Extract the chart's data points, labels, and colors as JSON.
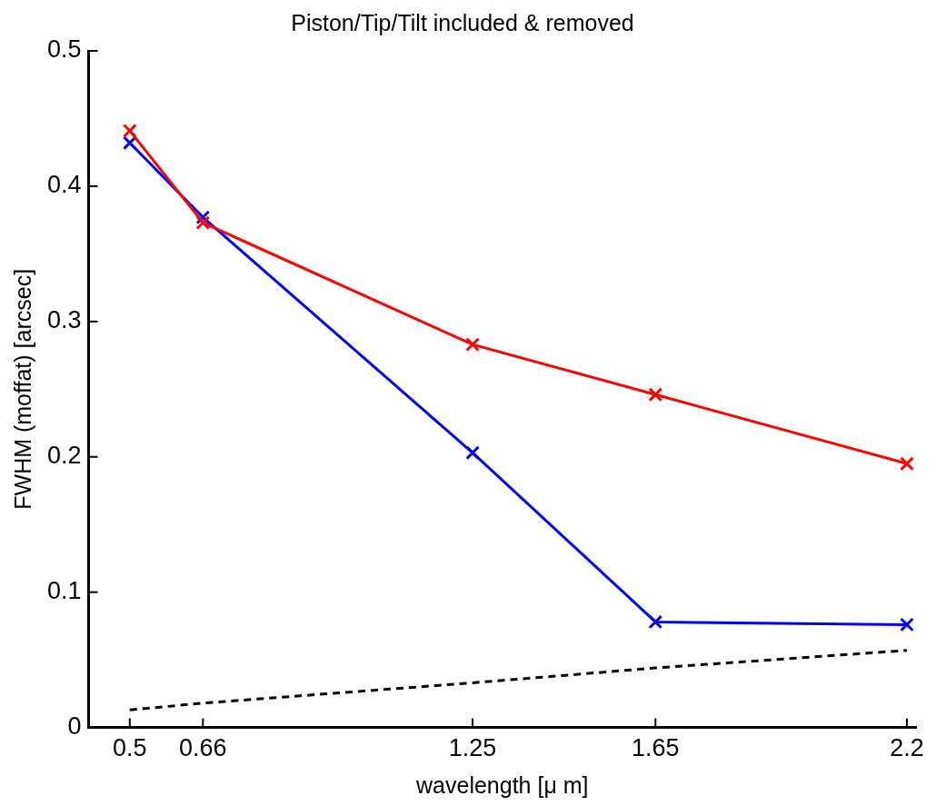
{
  "chart_data": {
    "type": "line",
    "title": "Piston/Tip/Tilt included & removed",
    "xlabel": "wavelength [μ m]",
    "ylabel": "FWHM (moffat) [arcsec]",
    "x": [
      0.5,
      0.66,
      1.25,
      1.65,
      2.2
    ],
    "series": [
      {
        "color": "#ff0000",
        "values": [
          0.441,
          0.373,
          0.283,
          0.246,
          0.195
        ],
        "marker": "cross",
        "line_style": "solid"
      },
      {
        "color": "#0000ff",
        "values": [
          0.432,
          0.377,
          0.203,
          0.078,
          0.076
        ],
        "marker": "cross",
        "line_style": "solid"
      },
      {
        "color": "#000000",
        "values": [
          0.013,
          0.018,
          0.033,
          0.044,
          0.057
        ],
        "marker": "none",
        "line_style": "dashed"
      }
    ],
    "xlim": [
      0.41,
      2.22
    ],
    "xticks": [
      0.5,
      0.66,
      1.25,
      1.65,
      2.2
    ],
    "ylim": [
      0,
      0.5
    ],
    "yticks": [
      0,
      0.1,
      0.2,
      0.3,
      0.4,
      0.5
    ],
    "grid": false,
    "legend": false
  }
}
